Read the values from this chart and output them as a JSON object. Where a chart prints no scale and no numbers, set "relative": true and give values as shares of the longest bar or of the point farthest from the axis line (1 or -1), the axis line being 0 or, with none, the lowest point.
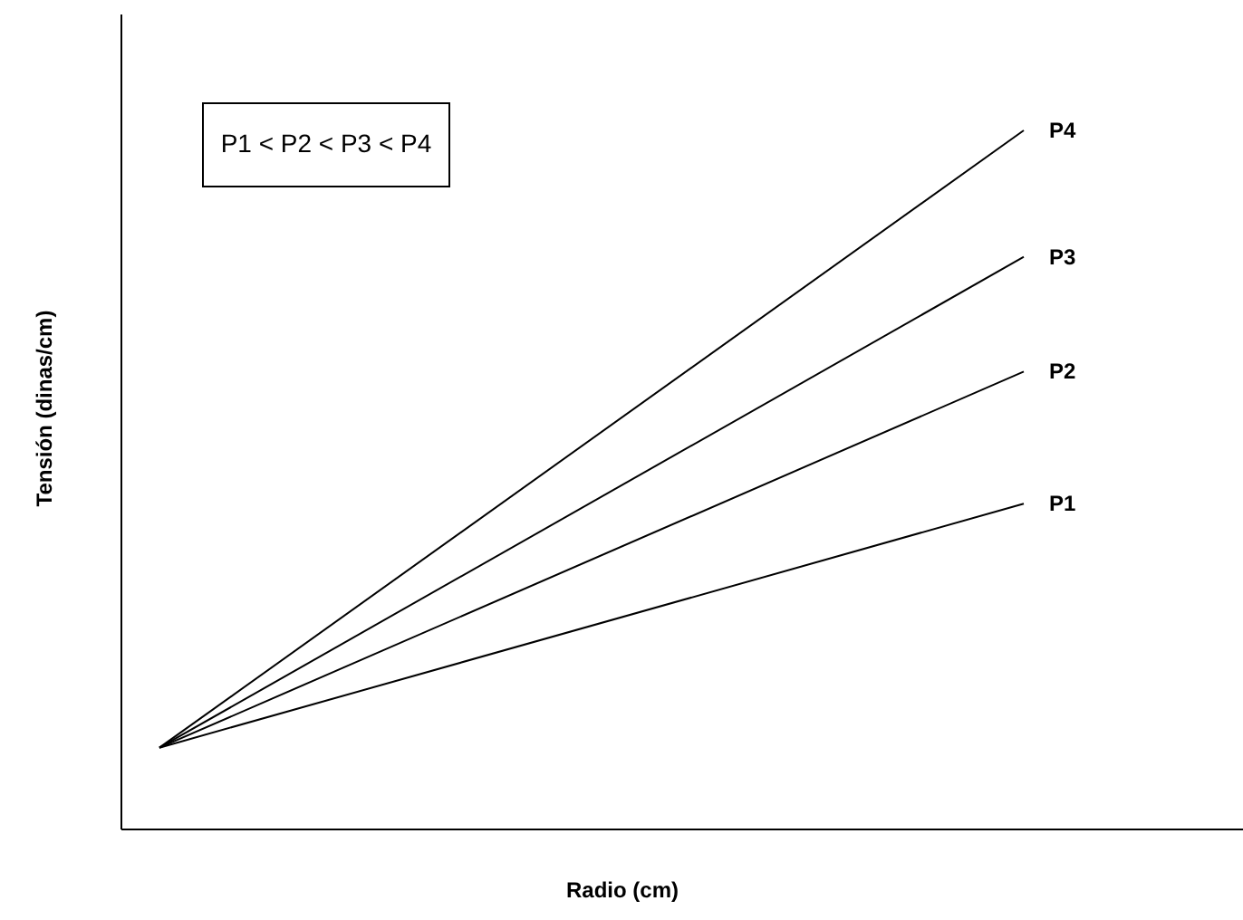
{
  "chart_data": {
    "type": "line",
    "relative": true,
    "xlabel": "Radio (cm)",
    "ylabel": "Tensión (dinas/cm)",
    "categories": [
      null,
      null
    ],
    "series": [
      {
        "name": "P1",
        "color": "#000000",
        "values": [
          0.117,
          0.466
        ]
      },
      {
        "name": "P2",
        "color": "#000000",
        "values": [
          0.117,
          0.655
        ]
      },
      {
        "name": "P3",
        "color": "#000000",
        "values": [
          0.117,
          0.819
        ]
      },
      {
        "name": "P4",
        "color": "#000000",
        "values": [
          0.117,
          1
        ]
      }
    ],
    "annotations": [
      "P1 < P2 < P3 < P4"
    ],
    "grid": false,
    "marker": "none",
    "line_style": "solid",
    "tick_labels": false
  }
}
